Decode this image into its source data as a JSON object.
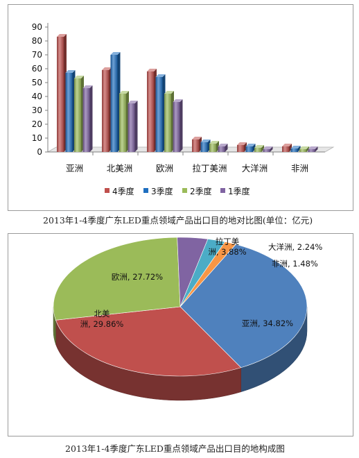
{
  "captions": {
    "bar": "2013年1-4季度广东LED重点领域产品出口目的地对比图(单位：亿元)",
    "pie": "2013年1-4季度广东LED重点领域产品出口目的地构成图"
  },
  "chart_data": [
    {
      "type": "bar",
      "categories": [
        "亚洲",
        "北美洲",
        "欧洲",
        "拉丁美洲",
        "大洋洲",
        "非洲"
      ],
      "series": [
        {
          "name": "4季度",
          "color": "#c0504d",
          "values": [
            83,
            59,
            58,
            9,
            5,
            4
          ]
        },
        {
          "name": "3季度",
          "color": "#1f6fc0",
          "values": [
            57,
            70,
            54,
            7,
            4,
            2.5
          ]
        },
        {
          "name": "2季度",
          "color": "#9bbb59",
          "values": [
            53,
            42,
            42,
            6,
            3,
            2
          ]
        },
        {
          "name": "1季度",
          "color": "#8064a2",
          "values": [
            46,
            35,
            36,
            4,
            2,
            2
          ]
        }
      ],
      "yticks": [
        "0",
        "10",
        "20",
        "30",
        "40",
        "50",
        "60",
        "70",
        "80",
        "90"
      ],
      "ylim": [
        0,
        90
      ],
      "legend_position": "bottom",
      "grid": false
    },
    {
      "type": "pie",
      "slices": [
        {
          "name": "亚洲",
          "value": 34.82,
          "label_lines": [
            "亚洲, 34.82%"
          ],
          "color": "#4f81bd"
        },
        {
          "name": "北美洲",
          "value": 29.86,
          "label_lines": [
            "北美",
            "洲, 29.86%"
          ],
          "color": "#c0504d"
        },
        {
          "name": "欧洲",
          "value": 27.72,
          "label_lines": [
            "欧洲, 27.72%"
          ],
          "color": "#9bbb59"
        },
        {
          "name": "拉丁美洲",
          "value": 3.88,
          "label_lines": [
            "拉丁美",
            "洲, 3.88%"
          ],
          "color": "#8064a2"
        },
        {
          "name": "大洋洲",
          "value": 2.24,
          "label_lines": [
            "大洋洲, 2.24%"
          ],
          "color": "#4bacc6"
        },
        {
          "name": "非洲",
          "value": 1.48,
          "label_lines": [
            "非洲, 1.48%"
          ],
          "color": "#f79646"
        }
      ],
      "style": "3d",
      "legend_position": "none"
    }
  ]
}
